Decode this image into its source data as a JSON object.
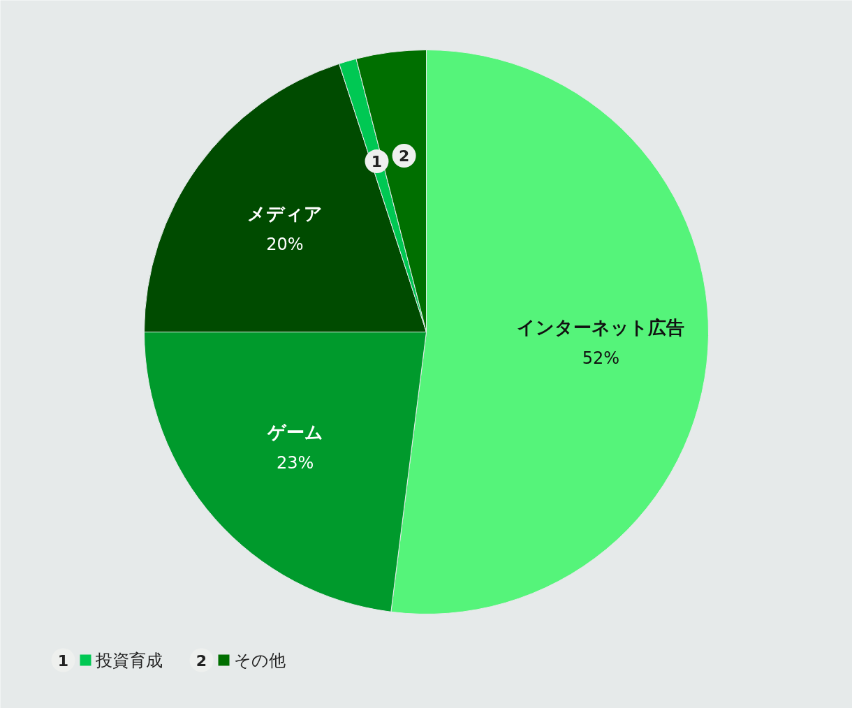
{
  "chart_data": {
    "type": "pie",
    "categories": [
      "インターネット広告",
      "ゲーム",
      "メディア",
      "投資育成",
      "その他"
    ],
    "values": [
      52,
      23,
      20,
      1,
      4
    ],
    "colors": [
      "#55f47a",
      "#009a2c",
      "#004b00",
      "#00c853",
      "#006f00"
    ],
    "value_labels": [
      "52%",
      "23%",
      "20%",
      null,
      null
    ],
    "annotations": [
      "1",
      "2"
    ],
    "legend": "bottom left"
  }
}
